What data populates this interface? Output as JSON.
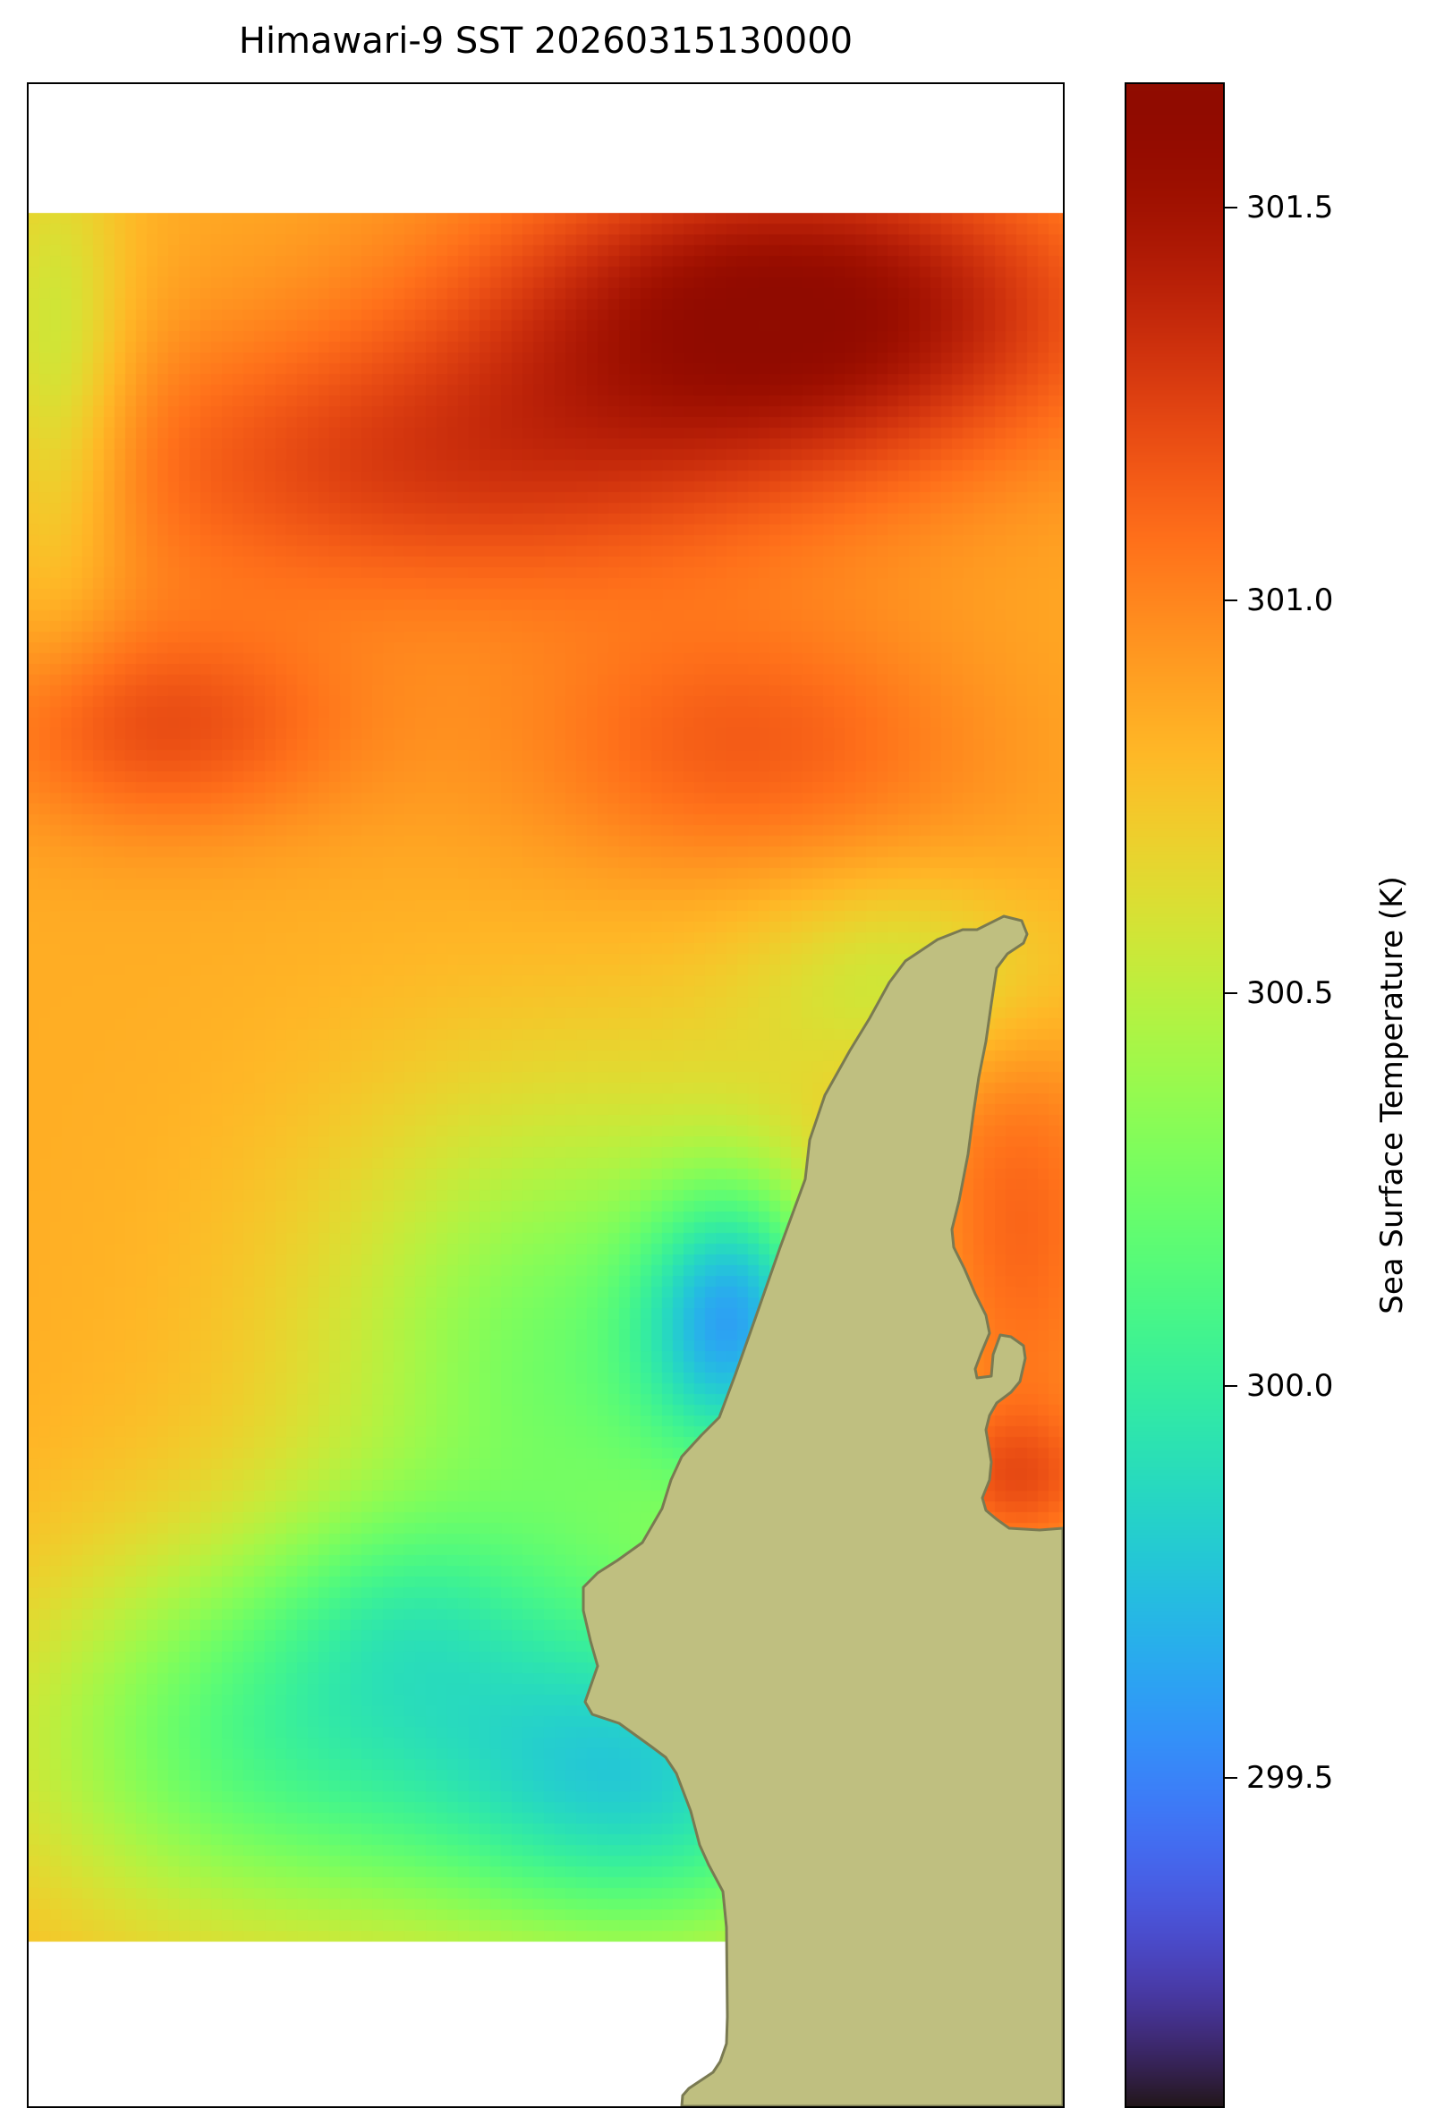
{
  "title": "Himawari-9 SST 20260315130000",
  "colorbar": {
    "label": "Sea Surface Temperature (K)",
    "colormap": "turbo",
    "vmin": 299.08,
    "vmax": 301.66,
    "ticks": [
      {
        "value": 299.5,
        "label": "299.5"
      },
      {
        "value": 300.0,
        "label": "300.0"
      },
      {
        "value": 300.5,
        "label": "300.5"
      },
      {
        "value": 301.0,
        "label": "301.0"
      },
      {
        "value": 301.5,
        "label": "301.5"
      }
    ]
  },
  "colors": {
    "land_fill": "#bfbf80",
    "coastline": "#7a7a52",
    "no_data": "#ffffff"
  }
}
